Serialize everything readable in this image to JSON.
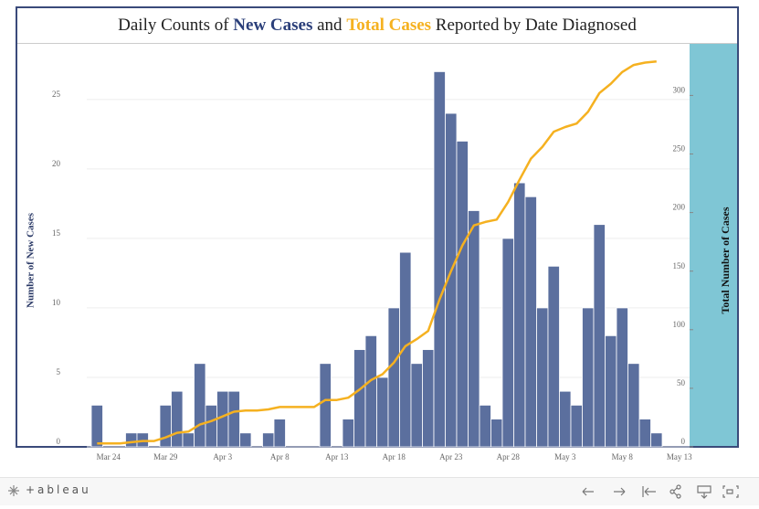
{
  "chart_data": {
    "type": "combo",
    "title_prefix": "Daily Counts of",
    "title_middle": "and",
    "title_suffix": "Reported by Date Diagnosed",
    "y_label": "Number of New Cases",
    "y2_label": "Total Number of Cases",
    "categories": [
      null,
      "Mar 24",
      null,
      null,
      null,
      null,
      "Mar 29",
      null,
      null,
      null,
      null,
      "Apr 3",
      null,
      null,
      null,
      null,
      "Apr 8",
      null,
      null,
      null,
      null,
      "Apr 13",
      null,
      null,
      null,
      null,
      "Apr 18",
      null,
      null,
      null,
      null,
      "Apr 23",
      null,
      null,
      null,
      null,
      "Apr 28",
      null,
      null,
      null,
      null,
      "May 3",
      null,
      null,
      null,
      null,
      "May 8",
      null,
      null,
      null,
      null,
      "May 13"
    ],
    "series": [
      {
        "name": "New Cases",
        "type": "bar",
        "color": "#5b6f9e",
        "values": [
          3,
          0,
          0,
          1,
          1,
          0,
          3,
          4,
          1,
          6,
          3,
          4,
          4,
          1,
          0,
          1,
          2,
          0,
          0,
          0,
          6,
          0,
          2,
          7,
          8,
          5,
          10,
          14,
          6,
          7,
          27,
          24,
          22,
          17,
          3,
          2,
          15,
          19,
          18,
          10,
          13,
          4,
          3,
          10,
          16,
          8,
          10,
          6,
          2,
          1,
          null,
          null
        ]
      },
      {
        "name": "Total Cases",
        "type": "line",
        "color": "#f5b120",
        "axis": "y2",
        "values": [
          3,
          3,
          3,
          4,
          5,
          5,
          8,
          12,
          13,
          19,
          22,
          26,
          30,
          31,
          31,
          32,
          34,
          34,
          34,
          34,
          40,
          40,
          42,
          49,
          57,
          62,
          72,
          86,
          92,
          99,
          126,
          150,
          172,
          189,
          192,
          194,
          209,
          228,
          246,
          256,
          269,
          273,
          276,
          286,
          302,
          310,
          320,
          326,
          328,
          329,
          null,
          null
        ]
      }
    ],
    "ylim": [
      0,
      29
    ],
    "yticks": [
      0,
      5,
      10,
      15,
      20,
      25
    ],
    "y2lim": [
      0,
      344
    ],
    "y2ticks": [
      0,
      50,
      100,
      150,
      200,
      250,
      300
    ],
    "grid": true
  },
  "footer": {
    "logo": "+ableau"
  }
}
